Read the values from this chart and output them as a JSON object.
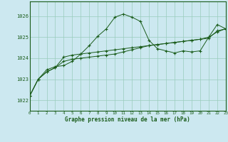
{
  "title": "Graphe pression niveau de la mer (hPa)",
  "background_color": "#cce8f0",
  "grid_color": "#99ccbb",
  "line_color": "#1a5c1a",
  "x_min": 0,
  "x_max": 23,
  "y_min": 1021.5,
  "y_max": 1026.7,
  "yticks": [
    1022,
    1023,
    1024,
    1025,
    1026
  ],
  "xticks": [
    0,
    1,
    2,
    3,
    4,
    5,
    6,
    7,
    8,
    9,
    10,
    11,
    12,
    13,
    14,
    15,
    16,
    17,
    18,
    19,
    20,
    21,
    22,
    23
  ],
  "xlabels": [
    "0",
    "1",
    "2",
    "3",
    "4",
    "5",
    "6",
    "7",
    "8",
    "9",
    "10",
    "11",
    "12",
    "13",
    "14",
    "15",
    "16",
    "17",
    "18",
    "19",
    "20",
    "21",
    "22",
    "23"
  ],
  "s1_x": [
    0,
    1,
    2,
    3,
    4,
    5,
    6,
    7,
    8,
    9,
    10,
    11,
    12,
    13,
    14,
    15,
    16,
    17,
    18,
    19,
    20,
    21,
    22,
    23
  ],
  "s1_y": [
    1022.2,
    1023.0,
    1023.45,
    1023.6,
    1023.65,
    1023.85,
    1024.2,
    1024.6,
    1025.05,
    1025.4,
    1025.95,
    1026.1,
    1025.95,
    1025.75,
    1024.85,
    1024.45,
    1024.35,
    1024.25,
    1024.35,
    1024.3,
    1024.35,
    1025.0,
    1025.6,
    1025.4
  ],
  "s2_x": [
    0,
    1,
    2,
    3,
    4,
    5,
    6,
    7,
    8,
    9,
    10,
    11,
    12,
    13,
    14,
    15,
    16,
    17,
    18,
    19,
    20,
    21,
    22,
    23
  ],
  "s2_y": [
    1022.2,
    1023.0,
    1023.35,
    1023.55,
    1023.85,
    1023.95,
    1024.0,
    1024.05,
    1024.1,
    1024.15,
    1024.2,
    1024.3,
    1024.4,
    1024.5,
    1024.6,
    1024.65,
    1024.7,
    1024.75,
    1024.8,
    1024.85,
    1024.9,
    1025.0,
    1025.25,
    1025.4
  ],
  "s3_x": [
    0,
    1,
    2,
    3,
    4,
    5,
    6,
    7,
    8,
    9,
    10,
    11,
    12,
    13,
    14,
    15,
    16,
    17,
    18,
    19,
    20,
    21,
    22,
    23
  ],
  "s3_y": [
    1022.2,
    1023.0,
    1023.35,
    1023.55,
    1024.05,
    1024.15,
    1024.2,
    1024.25,
    1024.3,
    1024.35,
    1024.4,
    1024.45,
    1024.5,
    1024.55,
    1024.6,
    1024.65,
    1024.7,
    1024.75,
    1024.8,
    1024.85,
    1024.9,
    1024.95,
    1025.3,
    1025.4
  ]
}
